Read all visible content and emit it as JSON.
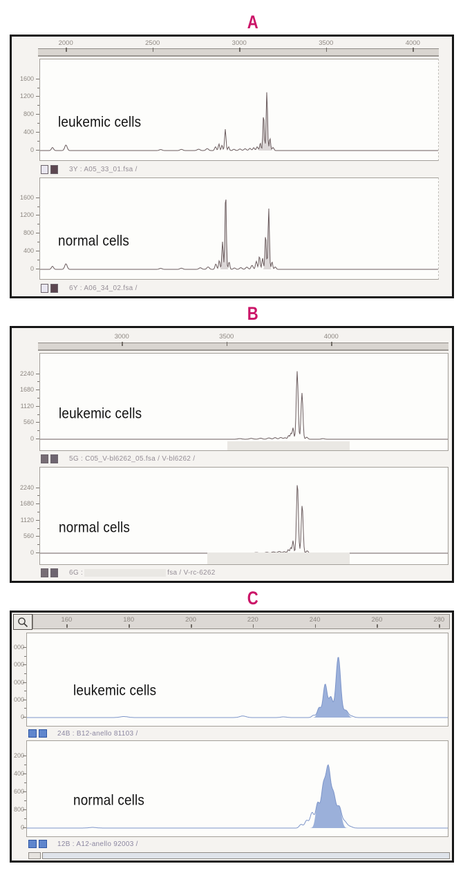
{
  "accent_color": "#cb1568",
  "chart_data": [
    {
      "type": "area",
      "title": "A",
      "x_min": 1840,
      "x_max": 4150,
      "x_ticks": [
        2000,
        2500,
        3000,
        3500,
        4000
      ],
      "right_edge_dashed": true,
      "series": [
        {
          "label": "leukemic cells",
          "file": "3Y : A05_33_01.fsa /",
          "swatches": [
            "#e9e6f0",
            "#5c4650"
          ],
          "stroke": "#6a5b5d",
          "peak_fill": "#d6d0d0",
          "y_max": 1950,
          "y_ticks": [
            {
              "v": 1600,
              "t": "1600"
            },
            {
              "v": 1200,
              "t": "1200"
            },
            {
              "v": 800,
              "t": "800"
            },
            {
              "v": 400,
              "t": "400"
            },
            {
              "v": 0,
              "t": "0"
            }
          ],
          "peaks": [
            [
              1912,
              70,
              6,
              0
            ],
            [
              1990,
              125,
              7,
              0
            ],
            [
              2540,
              22,
              8,
              0
            ],
            [
              2660,
              26,
              8,
              0
            ],
            [
              2760,
              30,
              8,
              0
            ],
            [
              2810,
              45,
              7,
              0
            ],
            [
              2858,
              85,
              5,
              0
            ],
            [
              2878,
              150,
              4,
              0
            ],
            [
              2896,
              120,
              4,
              0
            ],
            [
              2915,
              480,
              4,
              0
            ],
            [
              2934,
              85,
              4,
              0
            ],
            [
              2965,
              30,
              6,
              0
            ],
            [
              3000,
              35,
              7,
              0
            ],
            [
              3030,
              40,
              7,
              0
            ],
            [
              3058,
              50,
              6,
              0
            ],
            [
              3080,
              65,
              5,
              0
            ],
            [
              3100,
              85,
              5,
              0
            ],
            [
              3118,
              170,
              4,
              1
            ],
            [
              3137,
              810,
              4,
              1
            ],
            [
              3156,
              1320,
              4,
              1
            ],
            [
              3174,
              280,
              4,
              1
            ],
            [
              3192,
              70,
              5,
              0
            ]
          ]
        },
        {
          "label": "normal cells",
          "file": "6Y : A06_34_02.fsa /",
          "swatches": [
            "#e9e6f0",
            "#5c4650"
          ],
          "stroke": "#6a5b5d",
          "peak_fill": "#d6d0d0",
          "y_max": 1950,
          "y_ticks": [
            {
              "v": 1600,
              "t": "1600"
            },
            {
              "v": 1200,
              "t": "1200"
            },
            {
              "v": 800,
              "t": "800"
            },
            {
              "v": 400,
              "t": "400"
            },
            {
              "v": 0,
              "t": "0"
            }
          ],
          "peaks": [
            [
              1912,
              70,
              6,
              0
            ],
            [
              1990,
              125,
              7,
              0
            ],
            [
              2540,
              22,
              8,
              0
            ],
            [
              2660,
              26,
              8,
              0
            ],
            [
              2770,
              35,
              8,
              0
            ],
            [
              2815,
              55,
              7,
              0
            ],
            [
              2860,
              120,
              5,
              0
            ],
            [
              2880,
              200,
              4,
              0
            ],
            [
              2899,
              620,
              4,
              1
            ],
            [
              2917,
              1730,
              4,
              1
            ],
            [
              2937,
              170,
              4,
              0
            ],
            [
              2968,
              32,
              6,
              0
            ],
            [
              3005,
              38,
              7,
              0
            ],
            [
              3040,
              50,
              7,
              0
            ],
            [
              3070,
              90,
              6,
              0
            ],
            [
              3095,
              180,
              5,
              0
            ],
            [
              3113,
              300,
              4,
              0
            ],
            [
              3131,
              250,
              4,
              0
            ],
            [
              3149,
              780,
              4,
              1
            ],
            [
              3167,
              1370,
              4,
              1
            ],
            [
              3186,
              170,
              4,
              0
            ],
            [
              3205,
              55,
              5,
              0
            ]
          ]
        }
      ]
    },
    {
      "type": "line",
      "title": "B",
      "x_min": 2600,
      "x_max": 4560,
      "x_ticks": [
        3000,
        3500,
        4000
      ],
      "right_edge_dashed": false,
      "series": [
        {
          "label": "leukemic cells",
          "file": "5G : C05_V-bl6262_05.fsa / V-bl6262 /",
          "swatches": [
            "#776d75",
            "#6e6570"
          ],
          "stroke": "#6a5b5d",
          "peak_fill": null,
          "y_max": 2800,
          "y_ticks": [
            {
              "v": 2240,
              "t": "2240"
            },
            {
              "v": 1680,
              "t": "1680"
            },
            {
              "v": 1120,
              "t": "1120"
            },
            {
              "v": 560,
              "t": "560"
            },
            {
              "v": 0,
              "t": "0"
            }
          ],
          "redaction": {
            "left_pct": 46,
            "width_pct": 30,
            "height": 14
          },
          "peaks": [
            [
              3560,
              22,
              9,
              0
            ],
            [
              3615,
              28,
              9,
              0
            ],
            [
              3660,
              35,
              8,
              0
            ],
            [
              3700,
              45,
              8,
              0
            ],
            [
              3730,
              55,
              7,
              0
            ],
            [
              3757,
              60,
              7,
              0
            ],
            [
              3778,
              50,
              6,
              0
            ],
            [
              3795,
              130,
              4,
              0
            ],
            [
              3806,
              200,
              3.5,
              0
            ],
            [
              3816,
              390,
              3.5,
              0
            ],
            [
              3836,
              2340,
              4.5,
              0
            ],
            [
              3859,
              1590,
              4.5,
              0
            ],
            [
              3882,
              70,
              5,
              0
            ],
            [
              3960,
              22,
              7,
              0
            ]
          ]
        },
        {
          "label": "normal cells",
          "file_prefix": "6G :",
          "file_suffix": "fsa / V-rc-6262",
          "swatches": [
            "#776d75",
            "#6e6570"
          ],
          "stroke": "#6a5b5d",
          "peak_fill": null,
          "y_max": 2800,
          "y_ticks": [
            {
              "v": 2240,
              "t": "2240"
            },
            {
              "v": 1680,
              "t": "1680"
            },
            {
              "v": 1120,
              "t": "1120"
            },
            {
              "v": 560,
              "t": "560"
            },
            {
              "v": 0,
              "t": "0"
            }
          ],
          "redaction": {
            "left_pct": 41,
            "width_pct": 35,
            "height": 18
          },
          "peaks": [
            [
              3640,
              22,
              9,
              0
            ],
            [
              3690,
              30,
              8,
              0
            ],
            [
              3722,
              45,
              8,
              0
            ],
            [
              3750,
              60,
              7,
              0
            ],
            [
              3774,
              55,
              6,
              0
            ],
            [
              3793,
              120,
              4,
              0
            ],
            [
              3805,
              190,
              3.5,
              0
            ],
            [
              3816,
              430,
              3.5,
              0
            ],
            [
              3837,
              2420,
              4.5,
              0
            ],
            [
              3860,
              1660,
              4.5,
              0
            ],
            [
              3884,
              80,
              5,
              0
            ]
          ]
        }
      ]
    },
    {
      "type": "area",
      "title": "C",
      "x_min": 149,
      "x_max": 283.5,
      "x_ticks": [
        160,
        180,
        200,
        220,
        240,
        260,
        280
      ],
      "right_edge_dashed": false,
      "has_magnifier": true,
      "has_scrollbar": true,
      "series": [
        {
          "label": "leukemic cells",
          "file": "24B : B12-anello 81103 /",
          "swatches": [
            "#5f86cd",
            "#5f86cd"
          ],
          "stroke": "#7d95c9",
          "peak_fill": "#8aa2d3",
          "y_max": 4600,
          "y_ticks": [
            {
              "v": 4000,
              "t": "000"
            },
            {
              "v": 3000,
              "t": "000"
            },
            {
              "v": 2000,
              "t": "000"
            },
            {
              "v": 1000,
              "t": "000"
            },
            {
              "v": 0,
              "t": "0"
            }
          ],
          "peaks": [
            [
              180,
              60,
              1.2,
              0
            ],
            [
              218,
              90,
              1,
              0
            ],
            [
              231,
              40,
              0.9,
              0
            ],
            [
              240.6,
              130,
              0.55,
              0
            ],
            [
              242.4,
              560,
              0.6,
              1
            ],
            [
              244.3,
              1900,
              0.65,
              1
            ],
            [
              246.1,
              1150,
              0.65,
              1
            ],
            [
              248.5,
              3480,
              0.75,
              1
            ],
            [
              250.9,
              400,
              0.7,
              1
            ],
            [
              252.6,
              90,
              0.8,
              0
            ]
          ]
        },
        {
          "label": "normal cells",
          "file": "12B : A12-anello 92003 /",
          "swatches": [
            "#5f86cd",
            "#5f86cd"
          ],
          "stroke": "#7d95c9",
          "peak_fill": "#8aa2d3",
          "y_max": 3700,
          "y_ticks": [
            {
              "v": 3200,
              "t": "200"
            },
            {
              "v": 2400,
              "t": "400"
            },
            {
              "v": 1600,
              "t": "600"
            },
            {
              "v": 800,
              "t": "800"
            },
            {
              "v": 0,
              "t": "0"
            }
          ],
          "peaks": [
            [
              170,
              30,
              1.2,
              0
            ],
            [
              236.6,
              160,
              0.55,
              0
            ],
            [
              238.4,
              340,
              0.6,
              0
            ],
            [
              240.1,
              670,
              0.6,
              0
            ],
            [
              241.9,
              1080,
              0.65,
              1
            ],
            [
              243.7,
              1750,
              0.7,
              1
            ],
            [
              245.3,
              2620,
              0.75,
              1
            ],
            [
              247,
              1380,
              0.7,
              1
            ],
            [
              248.8,
              930,
              0.75,
              1
            ],
            [
              250.6,
              260,
              0.7,
              0
            ],
            [
              252.2,
              70,
              0.8,
              0
            ]
          ]
        }
      ]
    }
  ]
}
